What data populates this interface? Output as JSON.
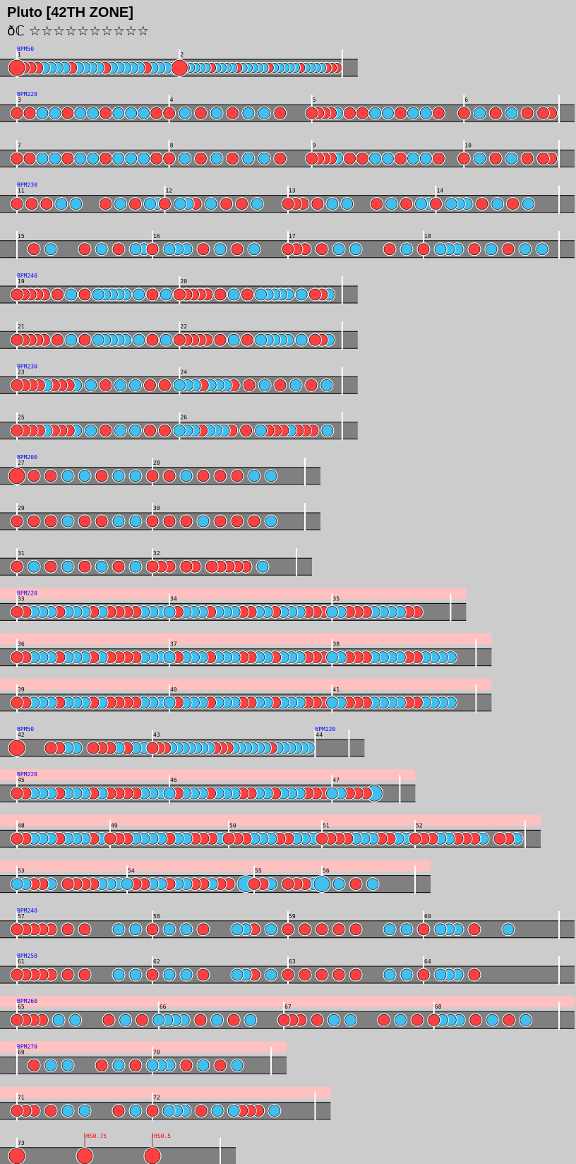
{
  "song": {
    "title": "Pluto [42TH ZONE]",
    "difficulty_mark": "ðℂ",
    "stars": "☆☆☆☆☆☆☆☆☆☆"
  },
  "colors": {
    "background": "#cccccc",
    "lane": "#808080",
    "lane_kiai": "#ffc0c0",
    "don": "#ff4040",
    "ka": "#40c0f0",
    "bpm_text": "#0000ff",
    "scroll_text": "#ff0000",
    "barline": "#ffffff"
  },
  "chart_data": {
    "type": "taiko-chart",
    "rows": [
      {
        "kiai": false,
        "bars": [
          {
            "num": "1",
            "bpm": "BPM50",
            "notes": "ODddkkkkdkkkkdkkkkkdkkkk"
          },
          {
            "num": "2",
            "notes": "ODkkkkdkkkkdkkkkkdkkkkkdkkkkddd"
          }
        ]
      },
      {
        "kiai": false,
        "bars": [
          {
            "num": "3",
            "bpm": "BPM220",
            "notes": "d0d0k0k0d0k0k0d0k0k0k0d0"
          },
          {
            "num": "4",
            "notes": "d0k0d0k0d0k0k0d000"
          },
          {
            "num": "5",
            "notes": "ddddk0d0d0k0k0d0k0k0d000"
          },
          {
            "num": "6",
            "notes": "d0k0d0k0d0dd"
          }
        ]
      },
      {
        "kiai": false,
        "bars": [
          {
            "num": "7",
            "notes": "d0d0k0k0d0k0k0d0k0k0k0d0"
          },
          {
            "num": "8",
            "notes": "d0k0d0k0d0k0k0d000"
          },
          {
            "num": "9",
            "notes": "ddddk0d0d0k0k0d0k0k0d000"
          },
          {
            "num": "10",
            "notes": "d0k0d0k0d0dd"
          }
        ]
      },
      {
        "kiai": false,
        "bars": [
          {
            "num": "11",
            "bpm": "BPM230",
            "notes": "d0d0d0k0k000d0k0d0kk"
          },
          {
            "num": "12",
            "notes": "d0kkd0k0d0d0k000"
          },
          {
            "num": "13",
            "notes": "ddd0d0k0k000d0k0d0kk"
          },
          {
            "num": "14",
            "notes": "d0kkk0d0k0d0k000"
          }
        ]
      },
      {
        "kiai": false,
        "bars": [
          {
            "num": "15",
            "notes": "00d0k000d0k0d0kk"
          },
          {
            "num": "16",
            "notes": "d0kkk0d0k0d0k000"
          },
          {
            "num": "17",
            "notes": "ddd0d0k0k000d0k0"
          },
          {
            "num": "18",
            "notes": "d0kkk0d0k0d0k0k0"
          }
        ]
      },
      {
        "kiai": false,
        "bars": [
          {
            "num": "19",
            "bpm": "BPM240",
            "notes": "ddddd0d0k0d0kkkkk0k0d0k0"
          },
          {
            "num": "20",
            "notes": "ddddd0d0k0d0kkkkk0k0ddk0"
          }
        ]
      },
      {
        "kiai": false,
        "bars": [
          {
            "num": "21",
            "notes": "ddddd0d0k0d0kkkkk0k0d0k0"
          },
          {
            "num": "22",
            "notes": "ddddd0d0k0d0kkkkk0k0ddk0"
          }
        ]
      },
      {
        "kiai": false,
        "bars": [
          {
            "num": "23",
            "bpm": "BPM230",
            "notes": "ddddkdddk0k0d0k0k0d0d0"
          },
          {
            "num": "24",
            "notes": "kkkdkkkd0d0k0d0k0d0k0"
          }
        ]
      },
      {
        "kiai": false,
        "bars": [
          {
            "num": "25",
            "notes": "ddddkdddk0k0d0k0k0d0d0"
          },
          {
            "num": "26",
            "notes": "kkkdkkkd0d0kdddkddd0k0"
          }
        ]
      },
      {
        "kiai": false,
        "bars": [
          {
            "num": "27",
            "bpm": "BPM200",
            "notes": "O0d0d0k0k0d0k0k0"
          },
          {
            "num": "28",
            "notes": "d0d0k0d0d0d0k0k000"
          }
        ]
      },
      {
        "kiai": false,
        "bars": [
          {
            "num": "29",
            "notes": "d0d0d0k0d0d0k0k0"
          },
          {
            "num": "30",
            "notes": "d0d0d0k0d0d0d0k000"
          }
        ]
      },
      {
        "kiai": false,
        "bars": [
          {
            "num": "31",
            "notes": "d0k0d0k0d0k0d0k0"
          },
          {
            "num": "32",
            "notes": "ddd0dd0ddddd0k000"
          }
        ]
      },
      {
        "kiai": true,
        "bars": [
          {
            "num": "33",
            "bpm": "BPM220",
            "notes": "ddkkkdkkkdkddddkkk"
          },
          {
            "num": "34",
            "notes": "kdkkkdkkkddkkdkkkddd"
          },
          {
            "num": "35",
            "notes": "kkdddkkkkdd000"
          }
        ]
      },
      {
        "kiai": true,
        "bars": [
          {
            "num": "36",
            "notes": "ddkkkdkkkdkddddkkk"
          },
          {
            "num": "37",
            "notes": "kdkkkdkkkddkkdkkkddd"
          },
          {
            "num": "38",
            "notes": "kkdddkkkkddkkkk00"
          }
        ]
      },
      {
        "kiai": true,
        "bars": [
          {
            "num": "39",
            "notes": "ddkkkdkkkdkddddkkk"
          },
          {
            "num": "40",
            "notes": "kdkkkdkkkddkkdkkkddd"
          },
          {
            "num": "41",
            "notes": "kkdddkkkkddkkkk00"
          }
        ]
      },
      {
        "kiai": false,
        "bars": [
          {
            "num": "42",
            "bpm": "BPM50",
            "notes": "O000ddkk0dddkdkk"
          },
          {
            "num": "43",
            "notes": "dddkkkkkkkdddkkkkkkdkkkkkk"
          },
          {
            "num": "44",
            "bpm": "BPM220",
            "notes": "0000"
          }
        ]
      },
      {
        "kiai": true,
        "bars": [
          {
            "num": "45",
            "bpm": "BPM220",
            "notes": "ddkkkdkkkdkddddkkk"
          },
          {
            "num": "46",
            "notes": "kdkkkdkkkddkkdkkkddd"
          },
          {
            "num": "47",
            "notes": "kkdddK00"
          }
        ]
      },
      {
        "kiai": true,
        "bars": [
          {
            "num": "48",
            "notes": "ddkkkdkkkdk"
          },
          {
            "num": "49",
            "notes": "dddkkkkdkkdddk"
          },
          {
            "num": "50",
            "notes": "dddkkkddkkk"
          },
          {
            "num": "51",
            "notes": "ddddkkkddkk"
          },
          {
            "num": "52",
            "notes": "dddkkdddk0ddk"
          }
        ]
      },
      {
        "kiai": true,
        "bars": [
          {
            "num": "53",
            "notes": "kkddk0ddddkkk"
          },
          {
            "num": "54",
            "notes": "kddkkdkkddkdd0K"
          },
          {
            "num": "55",
            "notes": "ddk0dddk"
          },
          {
            "num": "56",
            "notes": "K0k0d0k0000"
          }
        ]
      },
      {
        "kiai": false,
        "bars": [
          {
            "num": "57",
            "bpm": "BPM240",
            "notes": "ddddd0d0d000k0k0"
          },
          {
            "num": "58",
            "notes": "d0k0k0d000kkd0k0"
          },
          {
            "num": "59",
            "notes": "d0d0d0d0d000k0k0"
          },
          {
            "num": "60",
            "notes": "d0kkk0d000k00000"
          }
        ]
      },
      {
        "kiai": false,
        "bars": [
          {
            "num": "61",
            "bpm": "BPM250",
            "notes": "ddddd0d0d000k0k0"
          },
          {
            "num": "62",
            "notes": "d0k0k0d000kkd0k0"
          },
          {
            "num": "63",
            "notes": "d0d0d0d0d000k0k0"
          },
          {
            "num": "64",
            "notes": "d0kkk0d000000000"
          }
        ]
      },
      {
        "kiai": true,
        "bars": [
          {
            "num": "65",
            "bpm": "BPM260",
            "notes": "dddd0k0k000d0k0d0"
          },
          {
            "num": "66",
            "notes": "kkkk0d0k0d0k000"
          },
          {
            "num": "67",
            "notes": "ddd0d0k0k000d0k0d0"
          },
          {
            "num": "68",
            "notes": "dkkk0d0k0d0k000"
          }
        ]
      },
      {
        "kiai": true,
        "bars": [
          {
            "num": "69",
            "bpm": "BPM270",
            "notes": "00d0k0k000d0k0d0"
          },
          {
            "num": "70",
            "notes": "kkk0d0k0d0k000"
          }
        ]
      },
      {
        "kiai": true,
        "bars": [
          {
            "num": "71",
            "notes": "ddd0d0k0k000d0k0"
          },
          {
            "num": "72",
            "notes": "d0kkk0d0k0kddd0k0000"
          }
        ]
      },
      {
        "kiai": false,
        "bars": [
          {
            "num": "73",
            "notes": "O0000000",
            "scroll": ""
          },
          {
            "num": "",
            "notes": "O0000000",
            "scroll": "HS0.75"
          },
          {
            "num": "",
            "notes": "O0000000",
            "scroll": "HS0.5"
          }
        ]
      }
    ]
  }
}
